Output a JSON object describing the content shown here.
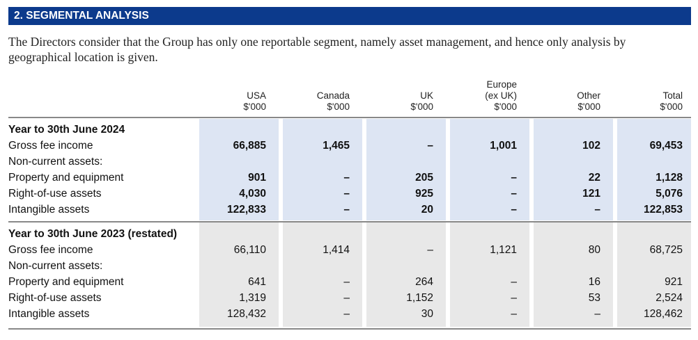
{
  "section_title": "2. SEGMENTAL ANALYSIS",
  "intro": "The Directors consider that the Group has only one reportable segment, namely asset management, and hence only analysis by geographical location is given.",
  "columns": [
    {
      "name": [
        "USA"
      ],
      "unit": "$'000"
    },
    {
      "name": [
        "Canada"
      ],
      "unit": "$'000"
    },
    {
      "name": [
        "UK"
      ],
      "unit": "$'000"
    },
    {
      "name": [
        "Europe",
        "(ex UK)"
      ],
      "unit": "$'000"
    },
    {
      "name": [
        "Other"
      ],
      "unit": "$'000"
    },
    {
      "name": [
        "Total"
      ],
      "unit": "$'000"
    }
  ],
  "periods": [
    {
      "title": "Year to 30th June 2024",
      "rows": [
        {
          "label": "Gross fee income",
          "values": [
            "66,885",
            "1,465",
            "–",
            "1,001",
            "102",
            "69,453"
          ]
        },
        {
          "label": "Non-current assets:",
          "values": []
        },
        {
          "label": "Property and equipment",
          "values": [
            "901",
            "–",
            "205",
            "–",
            "22",
            "1,128"
          ]
        },
        {
          "label": "Right-of-use assets",
          "values": [
            "4,030",
            "–",
            "925",
            "–",
            "121",
            "5,076"
          ]
        },
        {
          "label": "Intangible assets",
          "values": [
            "122,833",
            "–",
            "20",
            "–",
            "–",
            "122,853"
          ]
        }
      ]
    },
    {
      "title": "Year to 30th June 2023 (restated)",
      "rows": [
        {
          "label": "Gross fee income",
          "values": [
            "66,110",
            "1,414",
            "–",
            "1,121",
            "80",
            "68,725"
          ]
        },
        {
          "label": "Non-current assets:",
          "values": []
        },
        {
          "label": "Property and equipment",
          "values": [
            "641",
            "–",
            "264",
            "–",
            "16",
            "921"
          ]
        },
        {
          "label": "Right-of-use assets",
          "values": [
            "1,319",
            "–",
            "1,152",
            "–",
            "53",
            "2,524"
          ]
        },
        {
          "label": "Intangible assets",
          "values": [
            "128,432",
            "–",
            "30",
            "–",
            "–",
            "128,462"
          ]
        }
      ]
    }
  ]
}
